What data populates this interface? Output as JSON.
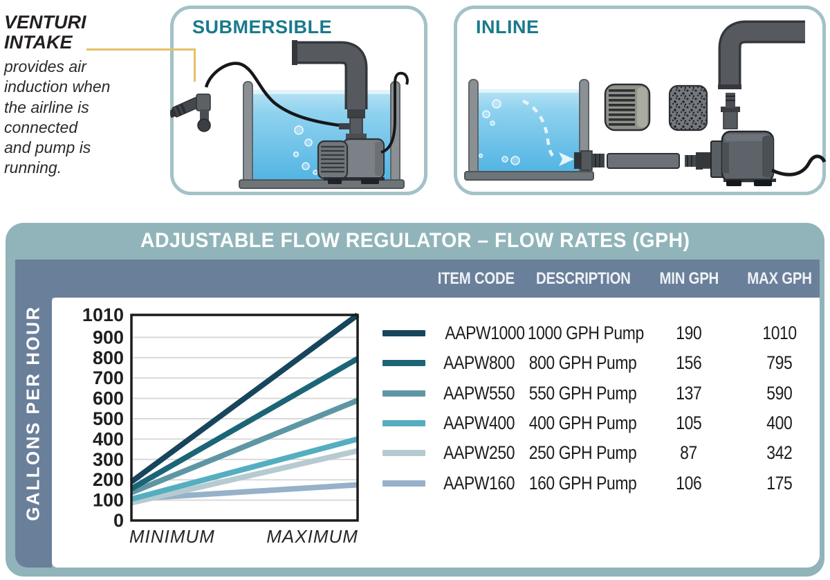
{
  "callout": {
    "heading": "VENTURI\nINTAKE",
    "body": "provides air\ninduction when\nthe airline is\nconnected\nand pump is\nrunning."
  },
  "panels": {
    "submersible": {
      "title": "SUBMERSIBLE"
    },
    "inline": {
      "title": "INLINE"
    }
  },
  "flow_table": {
    "title": "ADJUSTABLE FLOW REGULATOR – FLOW RATES (GPH)",
    "columns": [
      "ITEM CODE",
      "DESCRIPTION",
      "MIN GPH",
      "MAX GPH"
    ],
    "y_axis_label": "GALLONS PER HOUR",
    "x_axis_labels": [
      "MINIMUM",
      "MAXIMUM"
    ],
    "rows": [
      {
        "code": "AAPW1000",
        "description": "1000 GPH Pump",
        "min_gph": 190,
        "max_gph": 1010,
        "color": "#16455c"
      },
      {
        "code": "AAPW800",
        "description": "800 GPH Pump",
        "min_gph": 156,
        "max_gph": 795,
        "color": "#1b6577"
      },
      {
        "code": "AAPW550",
        "description": "550 GPH Pump",
        "min_gph": 137,
        "max_gph": 590,
        "color": "#5e97a3"
      },
      {
        "code": "AAPW400",
        "description": "400 GPH Pump",
        "min_gph": 105,
        "max_gph": 400,
        "color": "#55aec0"
      },
      {
        "code": "AAPW250",
        "description": "250 GPH Pump",
        "min_gph": 87,
        "max_gph": 342,
        "color": "#b6cad1"
      },
      {
        "code": "AAPW160",
        "description": "160 GPH Pump",
        "min_gph": 106,
        "max_gph": 175,
        "color": "#96b1c9"
      }
    ]
  },
  "chart_data": {
    "type": "line",
    "title": "ADJUSTABLE FLOW REGULATOR – FLOW RATES (GPH)",
    "ylabel": "GALLONS PER HOUR",
    "xlabel": "",
    "x_categories": [
      "MINIMUM",
      "MAXIMUM"
    ],
    "yticks": [
      0,
      100,
      200,
      300,
      400,
      500,
      600,
      700,
      800,
      900,
      1010
    ],
    "ylim": [
      0,
      1010
    ],
    "grid": true,
    "legend_position": "right-table",
    "series": [
      {
        "name": "AAPW1000",
        "label": "1000 GPH Pump",
        "values": [
          190,
          1010
        ],
        "color": "#16455c"
      },
      {
        "name": "AAPW800",
        "label": "800 GPH Pump",
        "values": [
          156,
          795
        ],
        "color": "#1b6577"
      },
      {
        "name": "AAPW550",
        "label": "550 GPH Pump",
        "values": [
          137,
          590
        ],
        "color": "#5e97a3"
      },
      {
        "name": "AAPW400",
        "label": "400 GPH Pump",
        "values": [
          105,
          400
        ],
        "color": "#55aec0"
      },
      {
        "name": "AAPW250",
        "label": "250 GPH Pump",
        "values": [
          87,
          342
        ],
        "color": "#b6cad1"
      },
      {
        "name": "AAPW160",
        "label": "160 GPH Pump",
        "values": [
          106,
          175
        ],
        "color": "#96b1c9"
      }
    ]
  },
  "colors": {
    "card_teal": "#90b4b9",
    "panel_border": "#a2c2c6",
    "header_blue_gray": "#6a7f9a",
    "panel_title_teal": "#197a8b",
    "callout_line_yellow": "#e4c167",
    "grid_gray": "#d9d9d9",
    "axis_black": "#1c1c1c",
    "water_blue": "#52b4e3"
  }
}
